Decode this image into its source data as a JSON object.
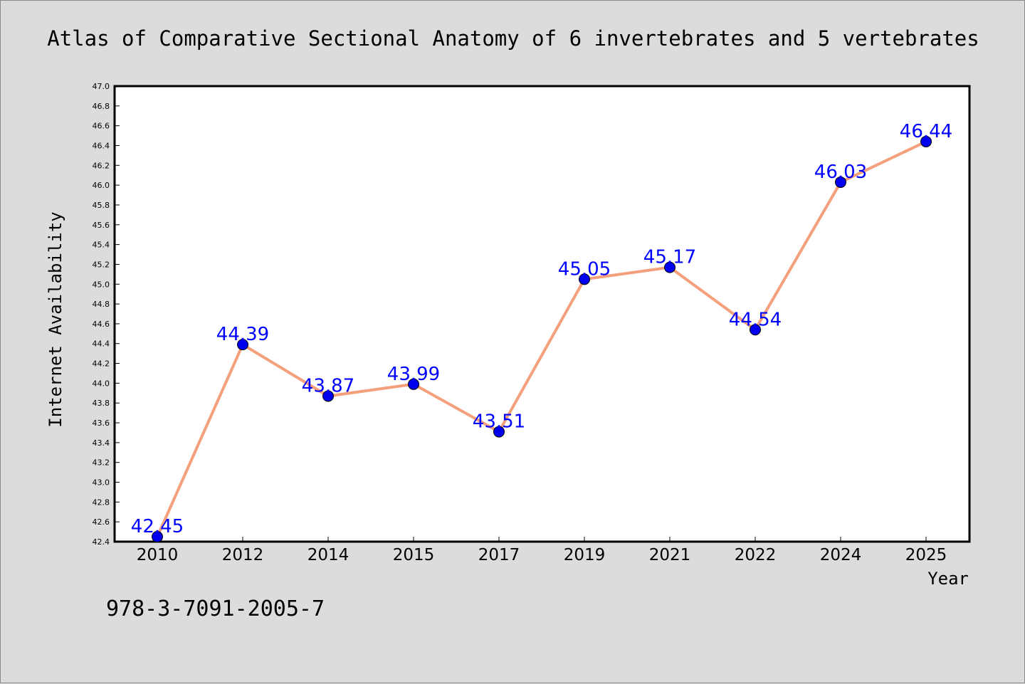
{
  "chart_data": {
    "type": "line",
    "title": "Atlas of Comparative Sectional Anatomy of 6 invertebrates and 5 vertebrates",
    "xlabel": "Year",
    "ylabel": "Internet Availability",
    "categories": [
      "2010",
      "2012",
      "2014",
      "2015",
      "2017",
      "2019",
      "2021",
      "2022",
      "2024",
      "2025"
    ],
    "series": [
      {
        "values": [
          42.45,
          44.39,
          43.87,
          43.99,
          43.51,
          45.05,
          45.17,
          44.54,
          46.03,
          46.44
        ]
      }
    ],
    "data_labels": [
      "42.45",
      "44.39",
      "43.87",
      "43.99",
      "43.51",
      "45.05",
      "45.17",
      "44.54",
      "46.03",
      "46.44"
    ],
    "ylim": [
      42.4,
      47.0
    ],
    "yticks": [
      "42.4",
      "42.6",
      "42.8",
      "43.0",
      "43.2",
      "43.4",
      "43.6",
      "43.8",
      "44.0",
      "44.2",
      "44.4",
      "44.6",
      "44.8",
      "45.0",
      "45.2",
      "45.4",
      "45.6",
      "45.8",
      "46.0",
      "46.2",
      "46.4",
      "46.6",
      "46.8",
      "47.0"
    ],
    "grid": false,
    "legend": "none",
    "line_color": "#f4a07c",
    "marker_color": "#0000ee",
    "label_color": "#0000ff"
  },
  "footer": {
    "isbn": "978-3-7091-2005-7"
  }
}
